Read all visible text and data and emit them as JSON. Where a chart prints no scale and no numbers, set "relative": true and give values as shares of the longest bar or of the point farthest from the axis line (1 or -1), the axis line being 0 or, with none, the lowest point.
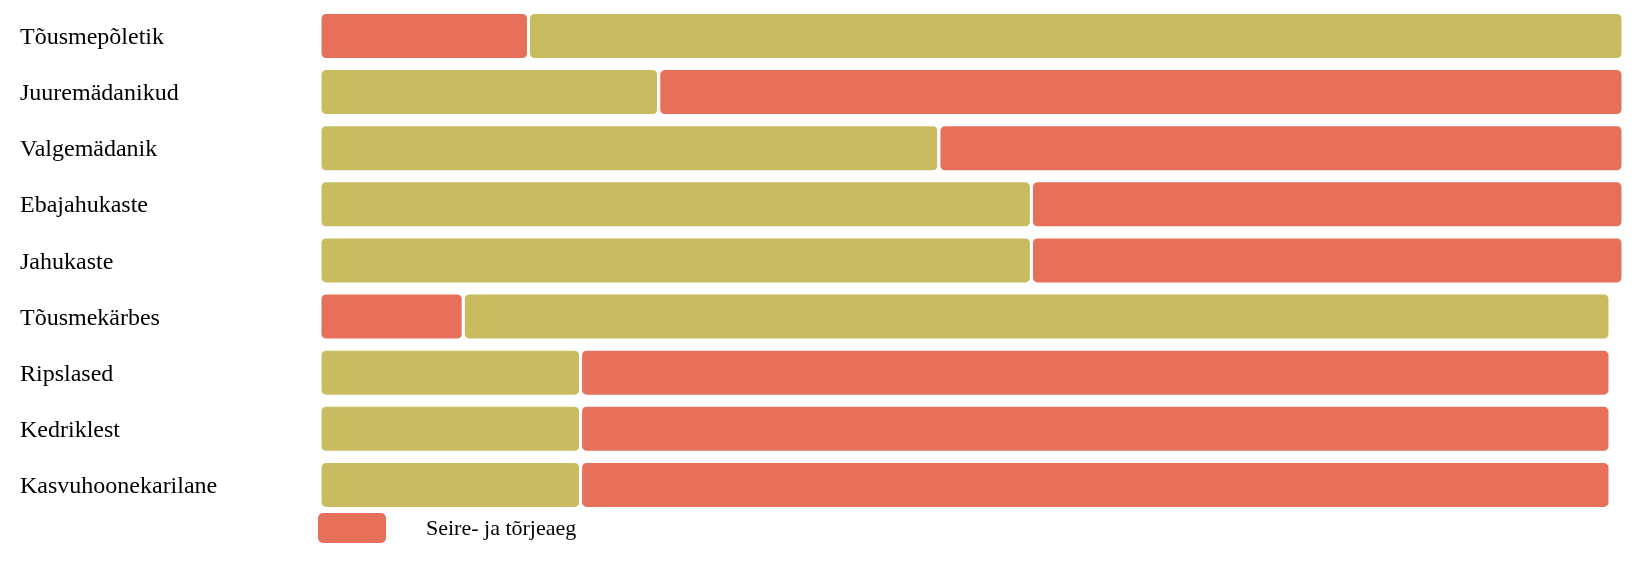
{
  "chart_data": {
    "type": "bar",
    "orientation": "horizontal",
    "stacked": true,
    "relative": true,
    "legend": "bottom",
    "grid": false,
    "categories": [
      "Tõusmepõletik",
      "Juuremädanikud",
      "Valgemädanik",
      "Ebajahukaste",
      "Jahukaste",
      "Tõusmekärbes",
      "Ripslased",
      "Kedriklest",
      "Kasvuhoonekarilane"
    ],
    "series": [
      {
        "color": "#e6705a",
        "values": [
          0.16,
          null,
          null,
          null,
          null,
          0.11,
          null,
          null,
          null
        ]
      },
      {
        "color": "#c9bc60",
        "values": [
          0.84,
          0.26,
          0.475,
          0.546,
          0.546,
          0.88,
          0.2,
          0.2,
          0.2
        ]
      },
      {
        "name": "Seire- ja tõrjeaeg",
        "color": "#e6705a",
        "values": [
          null,
          0.74,
          0.525,
          0.454,
          0.454,
          null,
          0.79,
          0.79,
          0.79
        ]
      }
    ]
  }
}
